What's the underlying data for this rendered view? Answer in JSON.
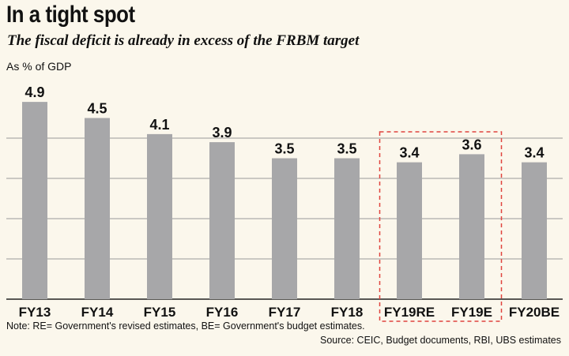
{
  "title": "In a tight spot",
  "subtitle": "The fiscal deficit is already in excess of the FRBM target",
  "unit_label": "As % of GDP",
  "note": "Note: RE= Government's revised estimates, BE= Government's budget estimates.",
  "source": "Source: CEIC, Budget documents, RBI, UBS estimates",
  "colors": {
    "bar": "#a7a7a9",
    "grid": "#9a9a9a",
    "highlight_box": "#e0443e",
    "background": "#fbf7ec"
  },
  "chart_data": {
    "type": "bar",
    "categories": [
      "FY13",
      "FY14",
      "FY15",
      "FY16",
      "FY17",
      "FY18",
      "FY19RE",
      "FY19E",
      "FY20BE"
    ],
    "values": [
      4.9,
      4.5,
      4.1,
      3.9,
      3.5,
      3.5,
      3.4,
      3.6,
      3.4
    ],
    "data_labels": [
      "4.9",
      "4.5",
      "4.1",
      "3.9",
      "3.5",
      "3.5",
      "3.4",
      "3.6",
      "3.4"
    ],
    "ylim": [
      0,
      5
    ],
    "gridlines": [
      1,
      2,
      3,
      4
    ],
    "grid": true,
    "highlighted_categories": [
      "FY19RE",
      "FY19E"
    ],
    "xlabel": "",
    "ylabel": ""
  }
}
